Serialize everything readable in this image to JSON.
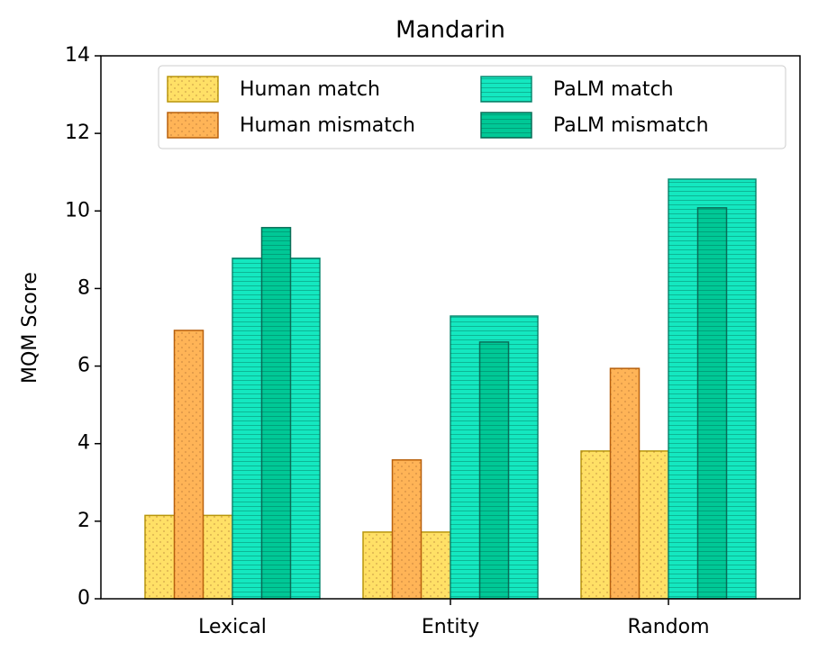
{
  "chart_data": {
    "type": "bar",
    "title": "Mandarin",
    "y_label": "MQM Score",
    "categories": [
      "Lexical",
      "Entity",
      "Random"
    ],
    "series": [
      {
        "name": "Human match",
        "color": "#ffe066",
        "edge": "#b8960c",
        "hatch": "..",
        "values": [
          2.15,
          1.72,
          3.81
        ]
      },
      {
        "name": "Human mismatch",
        "color": "#ffb457",
        "edge": "#b8600c",
        "hatch": "..",
        "values": [
          6.92,
          3.58,
          5.94
        ]
      },
      {
        "name": "PaLM match",
        "color": "#14e8c0",
        "edge": "#0e8a72",
        "hatch": "--",
        "values": [
          8.78,
          7.29,
          10.82
        ]
      },
      {
        "name": "PaLM mismatch",
        "color": "#00c896",
        "edge": "#0a6e58",
        "hatch": "--",
        "values": [
          9.57,
          6.62,
          10.08
        ]
      }
    ],
    "ylim": [
      0,
      14
    ],
    "yticks": [
      0,
      2,
      4,
      6,
      8,
      10,
      12,
      14
    ],
    "legend": "upper right",
    "legend_ncol": 2,
    "grid": false
  }
}
